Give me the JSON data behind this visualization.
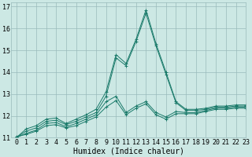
{
  "xlabel": "Humidex (Indice chaleur)",
  "background_color": "#cce8e4",
  "grid_color": "#99bbbb",
  "line_color": "#1a7a6a",
  "xlim": [
    -0.5,
    23
  ],
  "ylim": [
    11,
    17.2
  ],
  "yticks": [
    11,
    12,
    13,
    14,
    15,
    16,
    17
  ],
  "xticks": [
    0,
    1,
    2,
    3,
    4,
    5,
    6,
    7,
    8,
    9,
    10,
    11,
    12,
    13,
    14,
    15,
    16,
    17,
    18,
    19,
    20,
    21,
    22,
    23
  ],
  "series": [
    {
      "x": [
        0,
        1,
        2,
        3,
        4,
        5,
        6,
        7,
        8,
        9,
        10,
        11,
        12,
        13,
        14,
        15,
        16,
        17,
        18,
        19,
        20,
        21,
        22,
        23
      ],
      "y": [
        11.0,
        11.4,
        11.55,
        11.85,
        11.9,
        11.65,
        11.85,
        12.05,
        12.3,
        13.1,
        14.8,
        14.4,
        15.5,
        16.85,
        15.3,
        14.0,
        12.65,
        12.3,
        12.3,
        12.35,
        12.45,
        12.45,
        12.5,
        12.5
      ]
    },
    {
      "x": [
        0,
        1,
        2,
        3,
        4,
        5,
        6,
        7,
        8,
        9,
        10,
        11,
        12,
        13,
        14,
        15,
        16,
        17,
        18,
        19,
        20,
        21,
        22,
        23
      ],
      "y": [
        11.0,
        11.3,
        11.45,
        11.75,
        11.8,
        11.6,
        11.75,
        11.95,
        12.15,
        12.9,
        14.65,
        14.3,
        15.4,
        16.7,
        15.2,
        13.9,
        12.6,
        12.25,
        12.25,
        12.3,
        12.4,
        12.4,
        12.45,
        12.45
      ]
    },
    {
      "x": [
        0,
        1,
        2,
        3,
        4,
        5,
        6,
        7,
        8,
        9,
        10,
        11,
        12,
        13,
        14,
        15,
        16,
        17,
        18,
        19,
        20,
        21,
        22,
        23
      ],
      "y": [
        11.0,
        11.2,
        11.35,
        11.65,
        11.7,
        11.5,
        11.65,
        11.85,
        12.05,
        12.65,
        12.9,
        12.15,
        12.45,
        12.65,
        12.15,
        11.95,
        12.2,
        12.15,
        12.15,
        12.25,
        12.35,
        12.35,
        12.4,
        12.4
      ]
    },
    {
      "x": [
        0,
        1,
        2,
        3,
        4,
        5,
        6,
        7,
        8,
        9,
        10,
        11,
        12,
        13,
        14,
        15,
        16,
        17,
        18,
        19,
        20,
        21,
        22,
        23
      ],
      "y": [
        11.05,
        11.15,
        11.3,
        11.55,
        11.6,
        11.45,
        11.55,
        11.75,
        11.95,
        12.4,
        12.7,
        12.05,
        12.35,
        12.55,
        12.05,
        11.85,
        12.1,
        12.1,
        12.1,
        12.2,
        12.3,
        12.3,
        12.35,
        12.35
      ]
    }
  ],
  "font_family": "monospace",
  "tick_fontsize": 6,
  "xlabel_fontsize": 7,
  "marker": "+"
}
